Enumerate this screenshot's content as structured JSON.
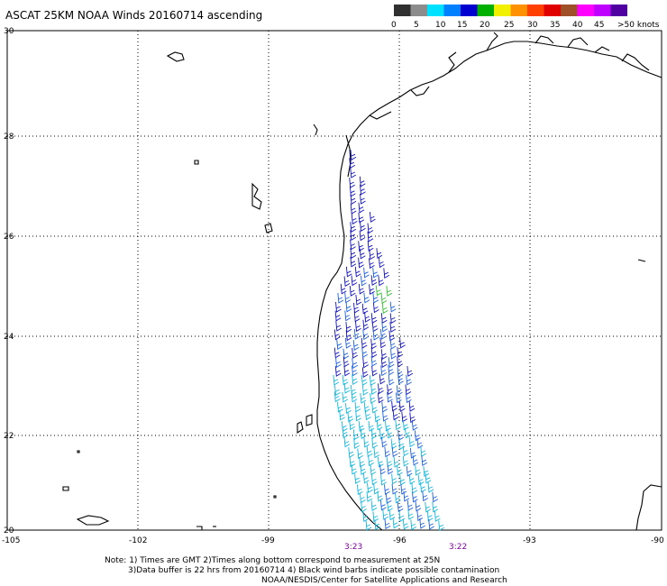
{
  "title": "ASCAT 25KM NOAA Winds 20160714 ascending",
  "legend": {
    "labels": [
      "0",
      "5",
      "10",
      "15",
      "20",
      "25",
      "30",
      "35",
      "40",
      "45",
      ">50 knots"
    ],
    "colors": [
      "#303030",
      "#8c8c8c",
      "#00e0ff",
      "#0080ff",
      "#0000d0",
      "#00b000",
      "#f0f000",
      "#ff9000",
      "#ff4000",
      "#e00000",
      "#a05028",
      "#ff00ff",
      "#c000ff",
      "#5000a0"
    ]
  },
  "lat_labels": [
    "30",
    "28",
    "26",
    "24",
    "22",
    "20"
  ],
  "lon_labels": [
    "-105",
    "-102",
    "-99",
    "-96",
    "-93",
    "-90"
  ],
  "pass_times": [
    "3:23",
    "3:22"
  ],
  "notes": [
    "Note: 1) Times are GMT 2)Times along bottom correspond to measurement at 25N",
    "3)Data buffer is 22 hrs from 20160714 4) Black wind barbs indicate possible contamination",
    "NOAA/NESDIS/Center for Satellite Applications and Research"
  ],
  "colors": {
    "grid": "#000000",
    "coast": "#000000",
    "barb_blue": "#1010c0",
    "barb_mid": "#1a60e0",
    "barb_cyan": "#10b8e0",
    "barb_green": "#30c030",
    "time_label": "#8000a0"
  }
}
